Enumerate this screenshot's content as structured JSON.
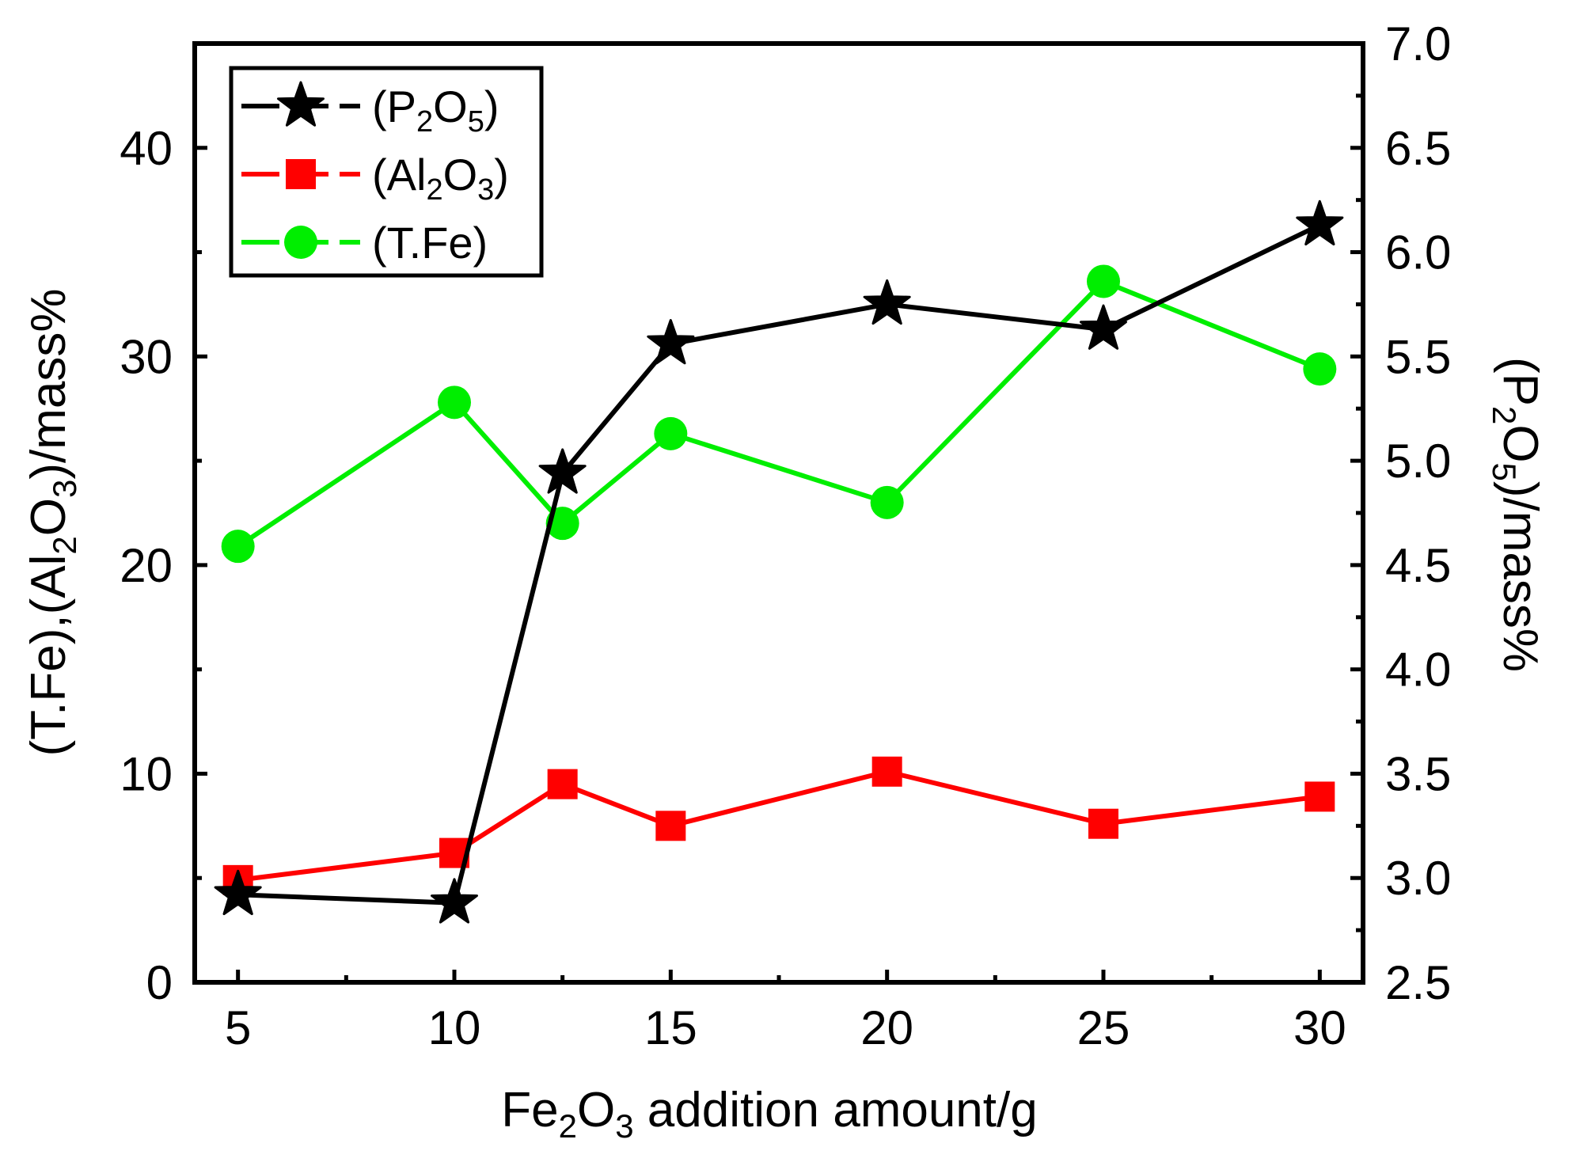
{
  "chart_data": {
    "type": "line",
    "x": [
      5,
      10,
      12.5,
      15,
      20,
      25,
      30
    ],
    "xlim": [
      4,
      31
    ],
    "x_ticks": [
      "5",
      "10",
      "15",
      "20",
      "25",
      "30"
    ],
    "xlabel": {
      "pre": "Fe",
      "sub1": "2",
      "mid": "O",
      "sub2": "3",
      "post": " addition amount/g"
    },
    "ylim_left": [
      0,
      45
    ],
    "y_left_ticks": [
      "0",
      "10",
      "20",
      "30",
      "40"
    ],
    "ylabel_left": {
      "p1": "(T.Fe),(Al",
      "s1": "2",
      "p2": "O",
      "s2": "3",
      "p3": ")/mass%"
    },
    "ylim_right": [
      2.5,
      7.0
    ],
    "y_right_ticks": [
      "2.5",
      "3.0",
      "3.5",
      "4.0",
      "4.5",
      "5.0",
      "5.5",
      "6.0",
      "6.5",
      "7.0"
    ],
    "ylabel_right": {
      "p1": "(P",
      "s1": "2",
      "p2": "O",
      "s2": "5",
      "p3": ")/mass%"
    },
    "series": [
      {
        "name": "(P2O5)",
        "legend": {
          "p1": "(P",
          "s1": "2",
          "p2": "O",
          "s2": "5",
          "p3": ")"
        },
        "axis": "right",
        "marker": "star",
        "color": "#000000",
        "values": [
          2.92,
          2.88,
          4.94,
          5.56,
          5.75,
          5.63,
          6.13
        ]
      },
      {
        "name": "(Al2O3)",
        "legend": {
          "p1": "(Al",
          "s1": "2",
          "p2": "O",
          "s2": "3",
          "p3": ")"
        },
        "axis": "left",
        "marker": "square",
        "color": "#ff0000",
        "values": [
          4.9,
          6.2,
          9.5,
          7.5,
          10.1,
          7.6,
          8.9
        ]
      },
      {
        "name": "(T.Fe)",
        "legend": {
          "p1": "(T.Fe)"
        },
        "axis": "left",
        "marker": "circle",
        "color": "#00ee00",
        "values": [
          20.9,
          27.8,
          22.0,
          26.3,
          23.0,
          33.6,
          29.4
        ]
      }
    ],
    "legend_position": "top-left"
  }
}
